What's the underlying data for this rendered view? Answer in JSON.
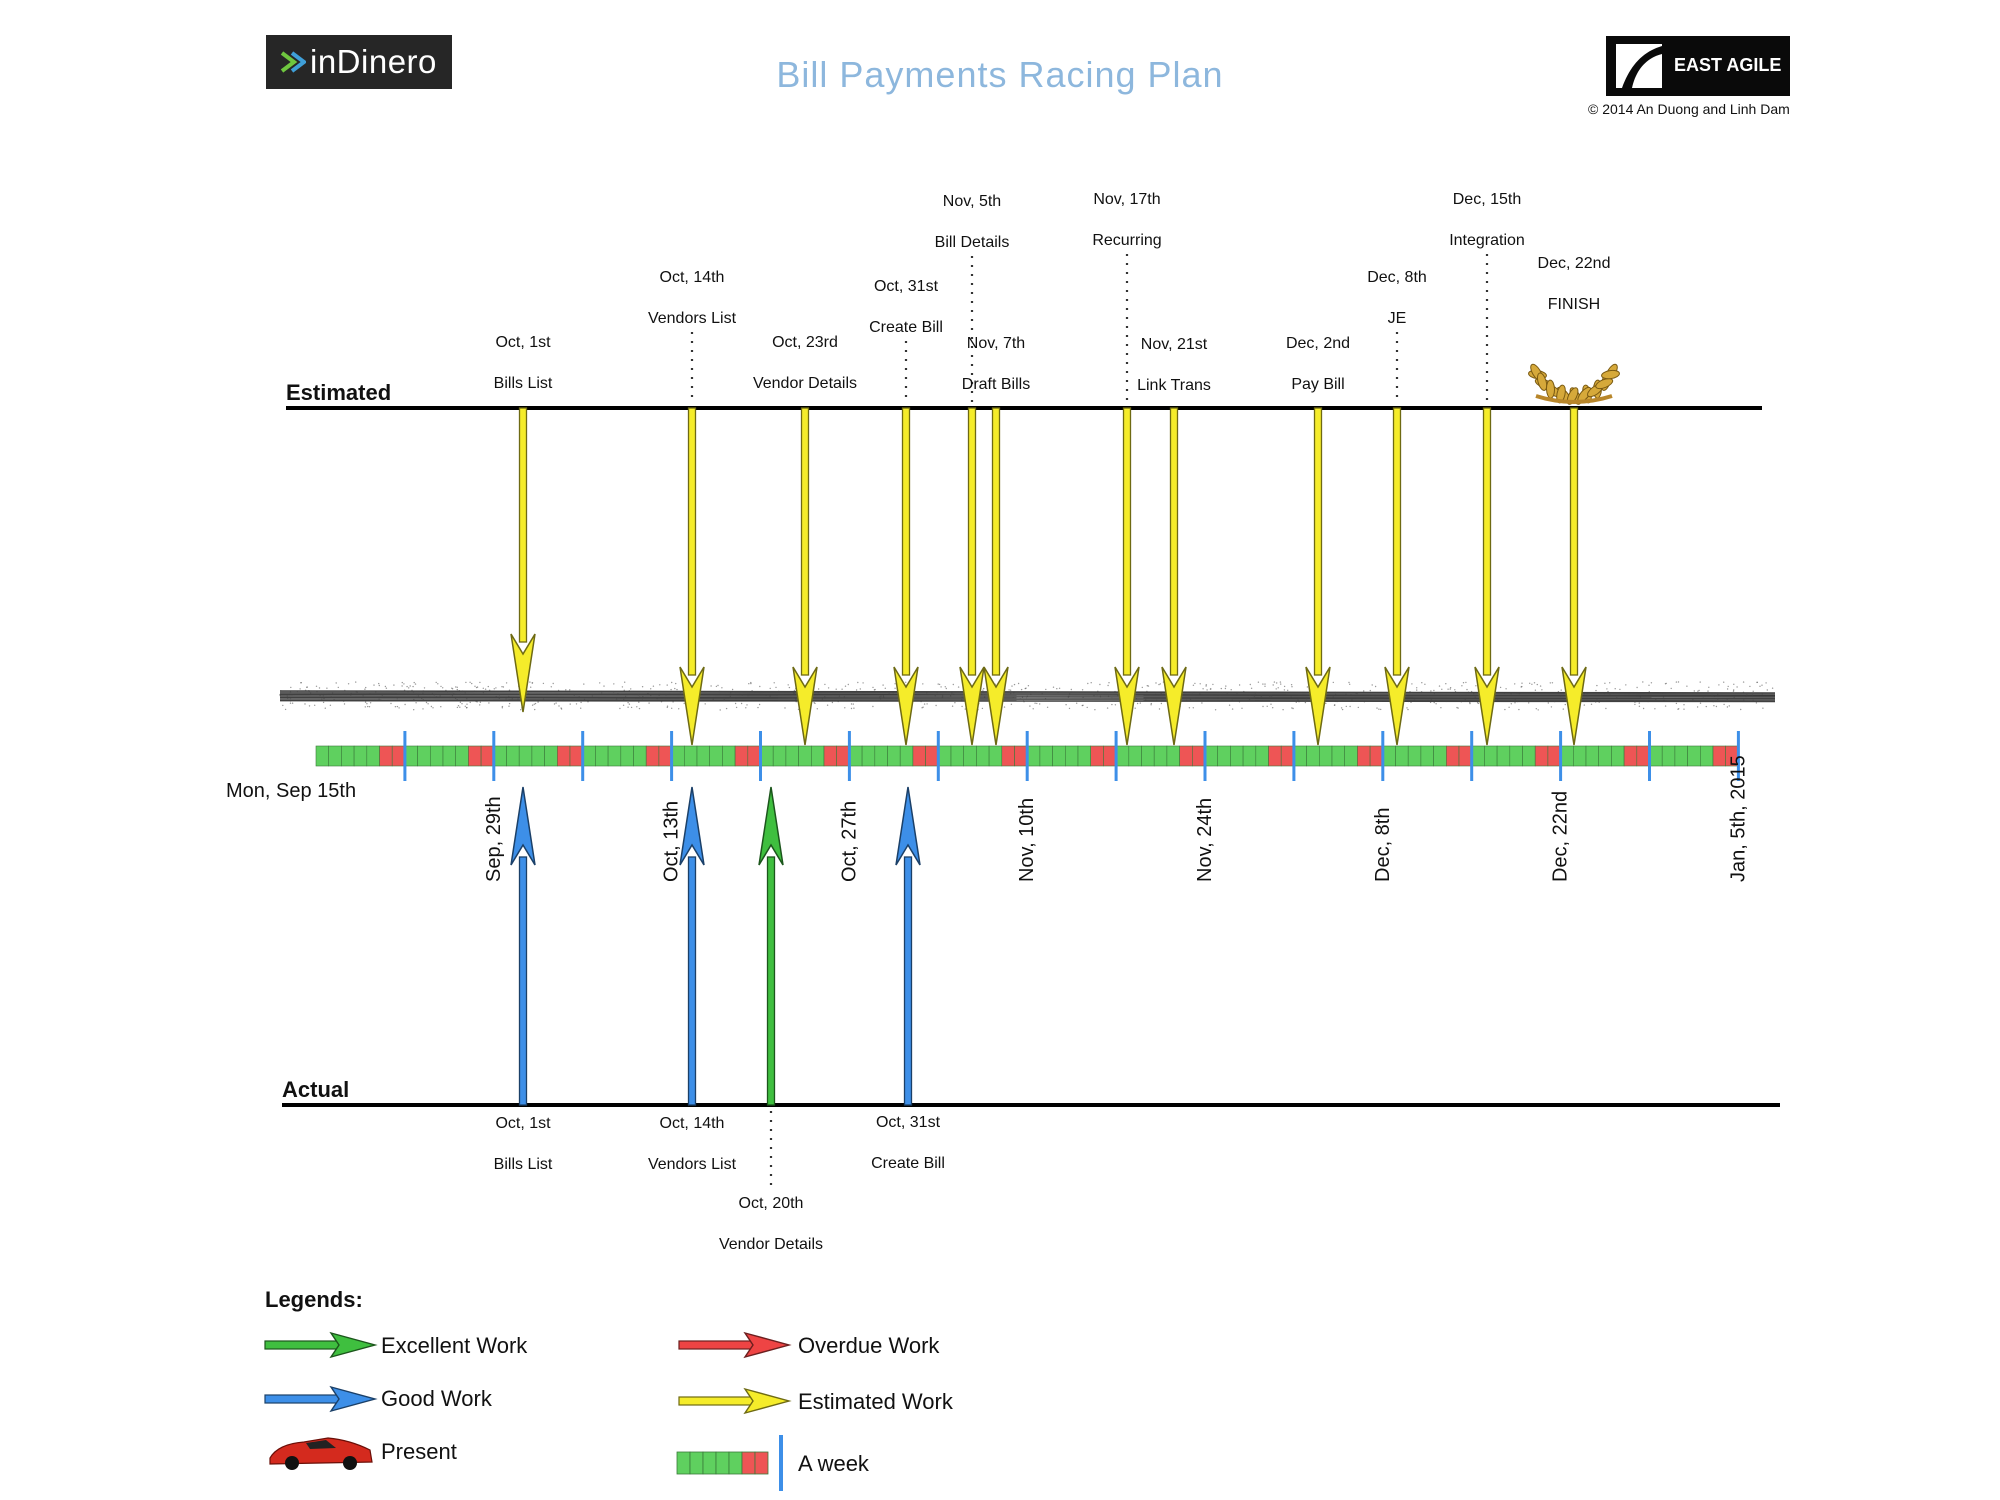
{
  "header": {
    "logo_left": "inDinero",
    "title": "Bill Payments Racing Plan",
    "logo_right": "EAST AGILE",
    "copyright": "© 2014 An Duong and Linh Dam"
  },
  "rows": {
    "estimated_label": "Estimated",
    "actual_label": "Actual",
    "start_label": "Mon, Sep 15th"
  },
  "week_ticks": [
    "Sep, 29th",
    "Oct, 13th",
    "Oct, 27th",
    "Nov, 10th",
    "Nov, 24th",
    "Dec, 8th",
    "Dec, 22nd",
    "Jan, 5th, 2015"
  ],
  "estimated_milestones": [
    {
      "date": "Oct, 1st",
      "task": "Bills List"
    },
    {
      "date": "Oct, 14th",
      "task": "Vendors List"
    },
    {
      "date": "Oct, 23rd",
      "task": "Vendor Details"
    },
    {
      "date": "Oct, 31st",
      "task": "Create Bill"
    },
    {
      "date": "Nov, 5th",
      "task": "Bill Details"
    },
    {
      "date": "Nov, 7th",
      "task": "Draft Bills"
    },
    {
      "date": "Nov, 17th",
      "task": "Recurring"
    },
    {
      "date": "Nov, 21st",
      "task": "Link Trans"
    },
    {
      "date": "Dec, 2nd",
      "task": "Pay Bill"
    },
    {
      "date": "Dec, 8th",
      "task": "JE"
    },
    {
      "date": "Dec, 15th",
      "task": "Integration"
    },
    {
      "date": "Dec, 22nd",
      "task": "FINISH"
    }
  ],
  "actual_milestones": [
    {
      "date": "Oct, 1st",
      "task": "Bills List",
      "status": "good"
    },
    {
      "date": "Oct, 14th",
      "task": "Vendors List",
      "status": "good"
    },
    {
      "date": "Oct, 20th",
      "task": "Vendor Details",
      "status": "excellent"
    },
    {
      "date": "Oct, 31st",
      "task": "Create Bill",
      "status": "good"
    }
  ],
  "legend": {
    "title": "Legends:",
    "items": [
      {
        "label": "Excellent Work",
        "color": "#3fbf3f"
      },
      {
        "label": "Overdue Work",
        "color": "#ee4444"
      },
      {
        "label": "Good Work",
        "color": "#3d8fe8"
      },
      {
        "label": "Estimated Work",
        "color": "#f5ec2a"
      },
      {
        "label": "Present",
        "icon": "red-car-icon"
      },
      {
        "label": "A week",
        "icon": "week-block-icon"
      }
    ]
  },
  "colors": {
    "estimated": "#f5ec2a",
    "good": "#3d8fe8",
    "excellent": "#3fbf3f",
    "overdue": "#ee4444",
    "workday": "#5fd05f",
    "weekend": "#ee5555",
    "week_marker": "#3d8fe8",
    "title": "#8db7dd"
  }
}
